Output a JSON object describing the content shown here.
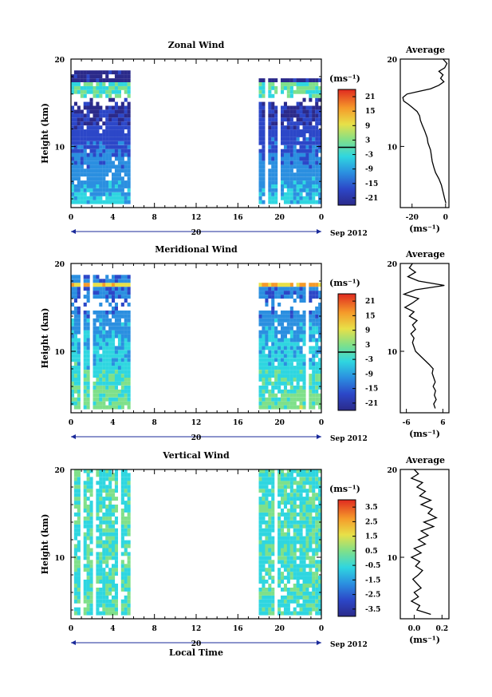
{
  "chart_data": [
    {
      "type": "heatmap",
      "title": "Zonal Wind",
      "ylabel": "Height (km)",
      "ylim": [
        3,
        20
      ],
      "x_ticks": [
        "0",
        "4",
        "8",
        "12",
        "16",
        "20",
        "0"
      ],
      "y_ticks": [
        "10",
        "20"
      ],
      "date_label": "20",
      "month_label": "Sep 2012",
      "xlabel": "",
      "colorbar": {
        "unit": "(ms⁻¹)",
        "min": -24,
        "max": 24,
        "ticks": [
          "21",
          "15",
          "9",
          "3",
          "-3",
          "-9",
          "-15",
          "-21"
        ],
        "zero_line": true
      },
      "data_time_ranges_hours": [
        [
          0,
          5.6
        ],
        [
          18,
          24
        ]
      ],
      "average_profile": {
        "title": "Average",
        "xlabel": "(ms⁻¹)",
        "xlim": [
          -27,
          2
        ],
        "x_ticks": [
          "-20",
          "0"
        ],
        "y_ticks": [
          "10",
          "20"
        ],
        "points": [
          [
            0.2,
            3.5
          ],
          [
            -0.5,
            4.0
          ],
          [
            -1.5,
            4.8
          ],
          [
            -2.5,
            5.6
          ],
          [
            -4.0,
            6.3
          ],
          [
            -6.0,
            7.0
          ],
          [
            -7.0,
            7.6
          ],
          [
            -8.0,
            8.3
          ],
          [
            -8.5,
            9.0
          ],
          [
            -9.0,
            9.6
          ],
          [
            -10.5,
            10.4
          ],
          [
            -11.0,
            11.0
          ],
          [
            -12.5,
            11.8
          ],
          [
            -14.0,
            12.5
          ],
          [
            -15.0,
            13.0
          ],
          [
            -15.5,
            13.5
          ],
          [
            -17.0,
            14.0
          ],
          [
            -19.5,
            14.4
          ],
          [
            -22.0,
            14.8
          ],
          [
            -25.0,
            15.2
          ],
          [
            -25.5,
            15.6
          ],
          [
            -23.0,
            16.0
          ],
          [
            -16.0,
            16.3
          ],
          [
            -9.0,
            16.6
          ],
          [
            -4.0,
            17.0
          ],
          [
            -1.0,
            17.4
          ],
          [
            -3.0,
            17.8
          ],
          [
            -1.5,
            18.2
          ],
          [
            -4.0,
            18.6
          ],
          [
            -0.5,
            19.0
          ],
          [
            0.8,
            19.5
          ],
          [
            -1.5,
            20.0
          ]
        ]
      }
    },
    {
      "type": "heatmap",
      "title": "Meridional Wind",
      "ylabel": "Height (km)",
      "ylim": [
        3,
        20
      ],
      "x_ticks": [
        "0",
        "4",
        "8",
        "12",
        "16",
        "20",
        "0"
      ],
      "y_ticks": [
        "10",
        "20"
      ],
      "date_label": "20",
      "month_label": "Sep 2012",
      "xlabel": "",
      "colorbar": {
        "unit": "(ms⁻¹)",
        "min": -24,
        "max": 24,
        "ticks": [
          "21",
          "15",
          "9",
          "3",
          "-3",
          "-9",
          "-15",
          "-21"
        ],
        "zero_line": true
      },
      "data_time_ranges_hours": [
        [
          0,
          5.6
        ],
        [
          18,
          24
        ]
      ],
      "average_profile": {
        "title": "Average",
        "xlabel": "(ms⁻¹)",
        "xlim": [
          -8,
          8
        ],
        "x_ticks": [
          "-6",
          "6"
        ],
        "y_ticks": [
          "10",
          "20"
        ],
        "points": [
          [
            3.5,
            3.5
          ],
          [
            3.0,
            4.0
          ],
          [
            3.8,
            4.5
          ],
          [
            3.2,
            5.0
          ],
          [
            3.6,
            5.5
          ],
          [
            2.8,
            6.0
          ],
          [
            3.5,
            6.5
          ],
          [
            3.0,
            7.0
          ],
          [
            2.5,
            7.5
          ],
          [
            2.8,
            8.0
          ],
          [
            1.5,
            8.5
          ],
          [
            0.0,
            9.0
          ],
          [
            -1.5,
            9.5
          ],
          [
            -3.0,
            10.0
          ],
          [
            -3.5,
            10.5
          ],
          [
            -4.0,
            11.0
          ],
          [
            -3.5,
            11.5
          ],
          [
            -4.5,
            12.0
          ],
          [
            -3.0,
            12.5
          ],
          [
            -4.0,
            13.0
          ],
          [
            -2.5,
            13.5
          ],
          [
            -5.0,
            14.0
          ],
          [
            -3.5,
            14.5
          ],
          [
            -6.5,
            15.0
          ],
          [
            -4.0,
            15.5
          ],
          [
            -2.0,
            16.0
          ],
          [
            -6.8,
            16.5
          ],
          [
            -3.0,
            17.0
          ],
          [
            6.5,
            17.5
          ],
          [
            -2.0,
            18.0
          ],
          [
            -5.5,
            18.5
          ],
          [
            -3.0,
            19.0
          ],
          [
            -5.0,
            19.5
          ],
          [
            -4.0,
            20.0
          ]
        ]
      }
    },
    {
      "type": "heatmap",
      "title": "Vertical Wind",
      "ylabel": "Height (km)",
      "ylim": [
        3,
        20
      ],
      "x_ticks": [
        "0",
        "4",
        "8",
        "12",
        "16",
        "20",
        "0"
      ],
      "y_ticks": [
        "10",
        "20"
      ],
      "date_label": "20",
      "month_label": "Sep 2012",
      "xlabel": "Local Time",
      "colorbar": {
        "unit": "(ms⁻¹)",
        "min": -4,
        "max": 4,
        "ticks": [
          "3.5",
          "2.5",
          "1.5",
          "0.5",
          "-0.5",
          "-1.5",
          "-2.5",
          "-3.5"
        ],
        "zero_line": false
      },
      "data_time_ranges_hours": [
        [
          0,
          5.6
        ],
        [
          18,
          24
        ]
      ],
      "average_profile": {
        "title": "Average",
        "xlabel": "(ms⁻¹)",
        "xlim": [
          -0.1,
          0.25
        ],
        "x_ticks": [
          "0.0",
          "0.2"
        ],
        "y_ticks": [
          "10",
          "20"
        ],
        "points": [
          [
            0.12,
            3.5
          ],
          [
            0.02,
            4.0
          ],
          [
            0.04,
            4.5
          ],
          [
            -0.02,
            5.0
          ],
          [
            0.03,
            5.5
          ],
          [
            0.0,
            6.0
          ],
          [
            0.05,
            6.5
          ],
          [
            0.02,
            7.0
          ],
          [
            -0.01,
            7.5
          ],
          [
            0.03,
            8.0
          ],
          [
            0.06,
            8.5
          ],
          [
            0.01,
            9.0
          ],
          [
            0.04,
            9.5
          ],
          [
            -0.02,
            10.0
          ],
          [
            0.05,
            10.5
          ],
          [
            0.0,
            11.0
          ],
          [
            0.08,
            11.5
          ],
          [
            0.03,
            12.0
          ],
          [
            0.1,
            12.5
          ],
          [
            0.05,
            13.0
          ],
          [
            0.14,
            13.5
          ],
          [
            0.07,
            14.0
          ],
          [
            0.16,
            14.5
          ],
          [
            0.1,
            15.0
          ],
          [
            0.13,
            15.5
          ],
          [
            0.05,
            16.0
          ],
          [
            0.12,
            16.5
          ],
          [
            0.04,
            17.0
          ],
          [
            0.08,
            17.5
          ],
          [
            0.02,
            18.0
          ],
          [
            0.06,
            18.5
          ],
          [
            -0.02,
            19.0
          ],
          [
            0.03,
            19.5
          ],
          [
            0.0,
            20.0
          ]
        ]
      }
    }
  ]
}
